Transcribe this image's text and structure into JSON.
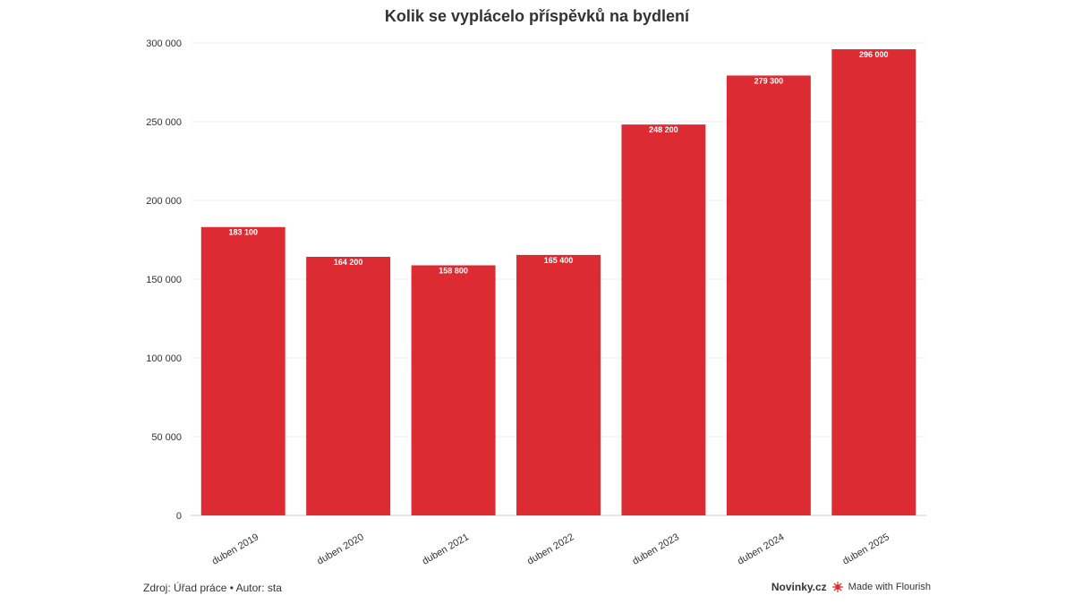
{
  "chart_data": {
    "type": "bar",
    "title": "Kolik se vyplácelo příspěvků na bydlení",
    "categories": [
      "duben 2019",
      "duben 2020",
      "duben 2021",
      "duben 2022",
      "duben 2023",
      "duben 2024",
      "duben 2025"
    ],
    "values": [
      183100,
      164200,
      158800,
      165400,
      248200,
      279300,
      296000
    ],
    "value_labels": [
      "183 100",
      "164 200",
      "158 800",
      "165 400",
      "248 200",
      "279 300",
      "296 000"
    ],
    "ylim": [
      0,
      300000
    ],
    "yticks": [
      0,
      50000,
      100000,
      150000,
      200000,
      250000,
      300000
    ],
    "ytick_labels": [
      "0",
      "50 000",
      "100 000",
      "150 000",
      "200 000",
      "250 000",
      "300 000"
    ],
    "xlabel": "",
    "ylabel": "",
    "grid": true,
    "bar_color": "#dc2b33"
  },
  "footer": {
    "source": "Zdroj: Úřad práce • Autor: sta",
    "brand": "Novinky.cz",
    "made_with": "Made with Flourish"
  }
}
